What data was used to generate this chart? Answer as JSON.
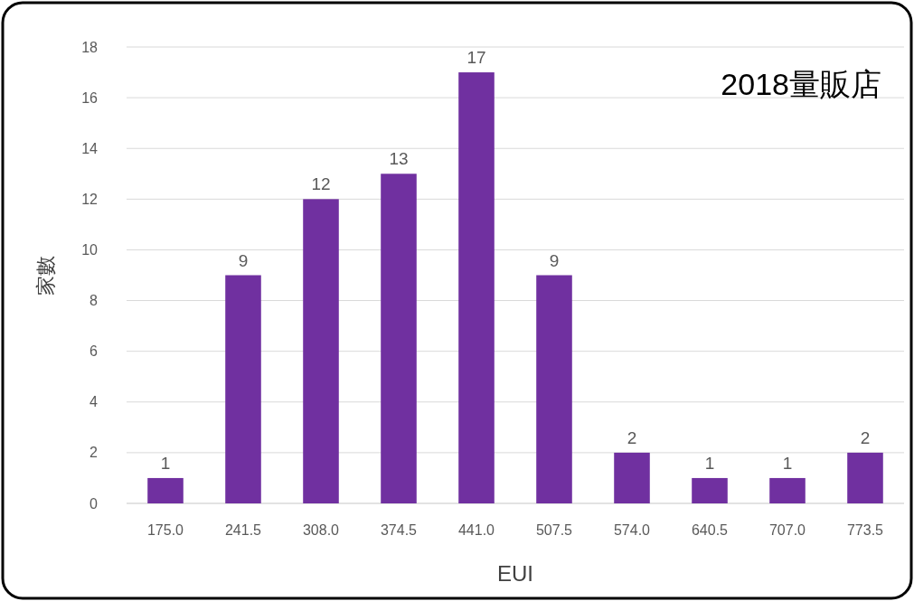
{
  "chart_data": {
    "type": "bar",
    "title": "2018量販店",
    "xlabel": "EUI",
    "ylabel": "家數",
    "categories": [
      "175.0",
      "241.5",
      "308.0",
      "374.5",
      "441.0",
      "507.5",
      "574.0",
      "640.5",
      "707.0",
      "773.5"
    ],
    "values": [
      1,
      9,
      12,
      13,
      17,
      9,
      2,
      1,
      1,
      2
    ],
    "color": "#7030a0",
    "ylim": [
      0,
      18
    ],
    "yticks": [
      0,
      2,
      4,
      6,
      8,
      10,
      12,
      14,
      16,
      18
    ],
    "grid": "y",
    "data_labels": true
  }
}
